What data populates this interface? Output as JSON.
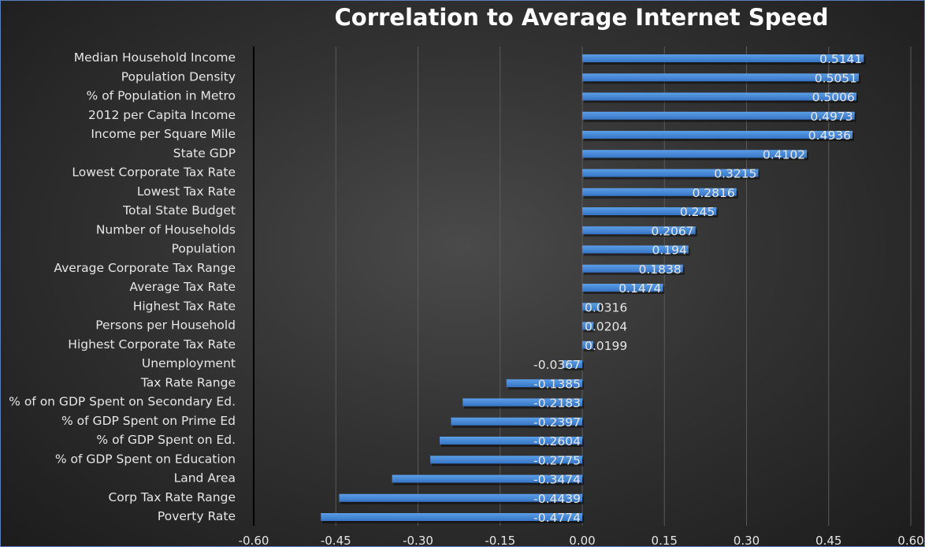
{
  "chart_data": {
    "type": "bar",
    "orientation": "horizontal",
    "title": "Correlation to Average Internet Speed",
    "categories": [
      "Median Household Income",
      "Population Density",
      "% of Population in Metro",
      "2012 per Capita Income",
      "Income per Square Mile",
      "State GDP",
      "Lowest Corporate Tax Rate",
      "Lowest Tax Rate",
      "Total State Budget",
      "Number of Households",
      "Population",
      "Average Corporate Tax Range",
      "Average Tax Rate",
      "Highest Tax Rate",
      "Persons per Household",
      "Highest Corporate Tax Rate",
      "Unemployment",
      "Tax Rate Range",
      "% of on GDP Spent on Secondary Ed.",
      "% of GDP Spent on Prime Ed",
      "% of GDP Spent on Ed.",
      "% of GDP Spent on Education",
      "Land Area",
      "Corp Tax Rate Range",
      "Poverty Rate"
    ],
    "values": [
      0.5141,
      0.5051,
      0.5006,
      0.4973,
      0.4936,
      0.4102,
      0.3215,
      0.2816,
      0.245,
      0.2067,
      0.194,
      0.1838,
      0.1474,
      0.0316,
      0.0204,
      0.0199,
      -0.0367,
      -0.1385,
      -0.2183,
      -0.2397,
      -0.2604,
      -0.2775,
      -0.3474,
      -0.4439,
      -0.4774
    ],
    "xlim": [
      -0.6,
      0.6
    ],
    "xticks": [
      "-0.60",
      "-0.45",
      "-0.30",
      "-0.15",
      "0.00",
      "0.15",
      "0.30",
      "0.45",
      "0.60"
    ],
    "grid": true,
    "legend": "none",
    "data_labels": true,
    "colors": {
      "bar": "#4a8ad8",
      "text": "#e6e6e6",
      "grid": "#5a5a5a",
      "axis": "#000000"
    }
  }
}
